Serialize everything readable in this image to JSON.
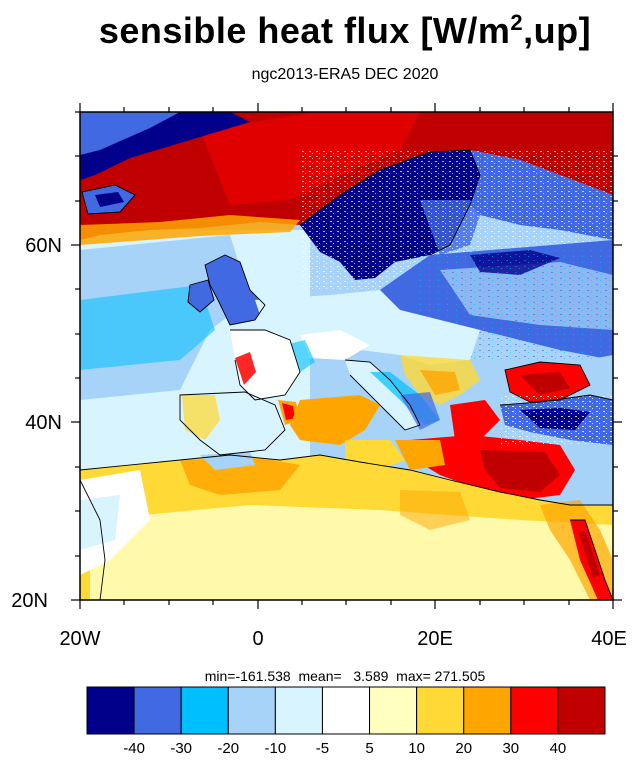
{
  "title_main": "sensible heat flux [W/m",
  "title_sup": "2",
  "title_end": ",up]",
  "subtitle": "ngc2013-ERA5  DEC 2020",
  "stats": "min=-161.538  mean=   3.589  max= 271.505",
  "x_ticks": [
    "20W",
    "0",
    "20E",
    "40E"
  ],
  "y_ticks": [
    "60N",
    "40N",
    "20N"
  ],
  "colorbar": {
    "colors": [
      "#00008b",
      "#4169e1",
      "#00bfff",
      "#a6d3f7",
      "#d8f4ff",
      "#ffffff",
      "#ffffc0",
      "#ffd936",
      "#ffa500",
      "#ff0000",
      "#c00000"
    ],
    "labels": [
      "-40",
      "-30",
      "-20",
      "-10",
      "-5",
      "5",
      "10",
      "20",
      "30",
      "40"
    ]
  },
  "map": {
    "lon_range": [
      -20,
      40
    ],
    "lat_range": [
      20,
      75
    ]
  }
}
